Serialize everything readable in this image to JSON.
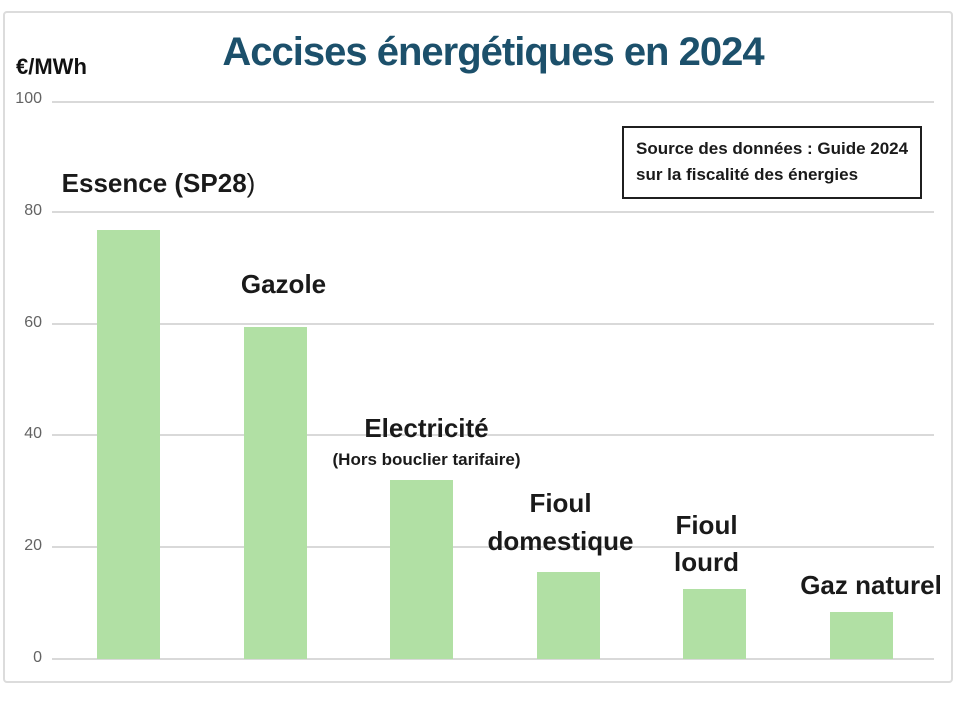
{
  "header": {
    "title": "Accises énergétiques en 2024",
    "title_color": "#1c506b",
    "unit_label": "€/MWh"
  },
  "source_box": {
    "line1": "Source des données : Guide 2024",
    "line2": "sur la fiscalité des énergies"
  },
  "colors": {
    "bar_fill": "#b1e0a4",
    "gridline": "#d9d9d9",
    "tick_text": "#636363",
    "label_text": "#1a1a1a",
    "frame_border": "#dcdcdc",
    "source_border": "#1f1f1f"
  },
  "chart_data": {
    "type": "bar",
    "title": "Accises énergétiques en 2024",
    "xlabel": "",
    "ylabel": "€/MWh",
    "ylim": [
      0,
      100
    ],
    "yticks": [
      0,
      20,
      40,
      60,
      80,
      100
    ],
    "grid": true,
    "legend": false,
    "bar_color": "#b1e0a4",
    "categories": [
      "Essence (SP28)",
      "Gazole",
      "Electricité (Hors bouclier tarifaire)",
      "Fioul domestique",
      "Fioul lourd",
      "Gaz naturel"
    ],
    "values": [
      76.8,
      59.4,
      32,
      15.6,
      12.5,
      8.5
    ],
    "unit": "€/MWh",
    "bars": [
      {
        "label_lines": [
          "Essence (SP28"
        ],
        "label_tail": ")",
        "sub_lines": [],
        "value": 76.8
      },
      {
        "label_lines": [
          "Gazole"
        ],
        "sub_lines": [],
        "value": 59.4
      },
      {
        "label_lines": [
          "Electricité"
        ],
        "sub_lines": [
          "(Hors bouclier tarifaire)"
        ],
        "value": 32
      },
      {
        "label_lines": [
          "Fioul",
          "domestique"
        ],
        "sub_lines": [],
        "value": 15.6
      },
      {
        "label_lines": [
          "Fioul",
          "lourd"
        ],
        "sub_lines": [],
        "value": 12.5
      },
      {
        "label_lines": [
          "Gaz naturel"
        ],
        "sub_lines": [],
        "value": 8.5
      }
    ]
  }
}
